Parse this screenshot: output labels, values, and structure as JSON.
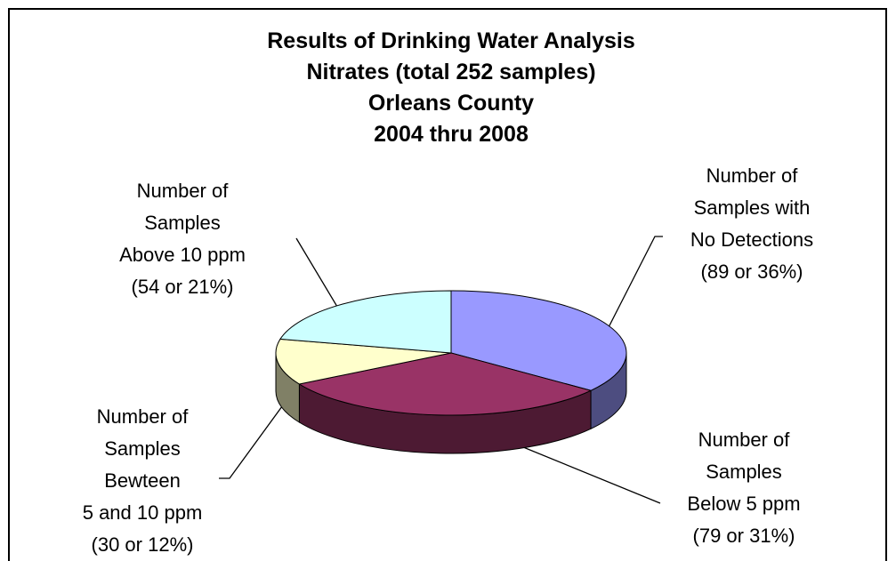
{
  "chart_data": {
    "type": "pie3d",
    "title": "Results of Drinking Water Analysis",
    "subtitle": [
      "Nitrates (total 252 samples)",
      "Orleans County",
      "2004 thru 2008"
    ],
    "categories": [
      [
        "Number of",
        "Samples with",
        "No Detections"
      ],
      [
        "Number of",
        "Samples",
        "Below 5 ppm"
      ],
      [
        "Number of",
        "Samples",
        "Bewteen",
        "5 and 10 ppm"
      ],
      [
        "Number of",
        "Samples",
        "Above 10 ppm"
      ]
    ],
    "values": [
      89,
      79,
      30,
      54
    ],
    "value_labels": [
      "(89 or 36%)",
      "(79 or 31%)",
      "(30 or 12%)",
      "(54 or 21%)"
    ],
    "colors": [
      "#9999ff",
      "#993366",
      "#ffffcc",
      "#ccffff"
    ],
    "side_colors": [
      "#4d4d80",
      "#4d1a33",
      "#808066",
      "#668080"
    ]
  }
}
